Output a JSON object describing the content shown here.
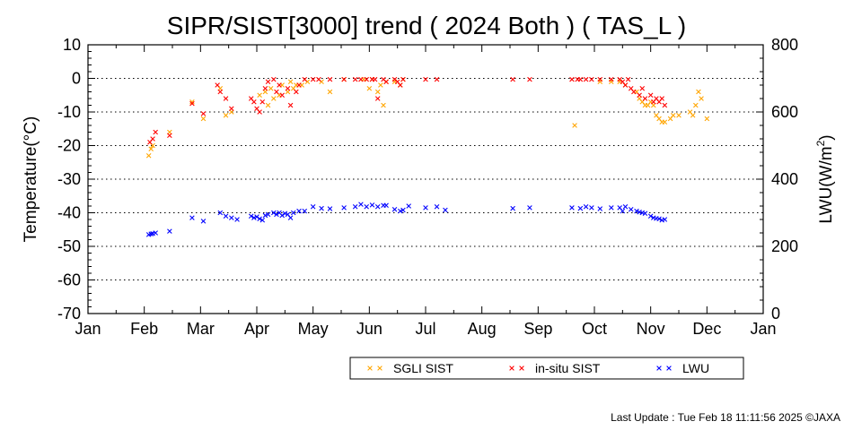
{
  "chart_data": {
    "type": "scatter",
    "title": "SIPR/SIST[3000] trend ( 2024 Both ) ( TAS_L )",
    "ylabel": "Temperature(°C)",
    "y2label_main": "LWU(W/m",
    "y2label_sup": "2",
    "y2label_end": ")",
    "ylim": [
      -70,
      10
    ],
    "yticks": [
      10,
      0,
      -10,
      -20,
      -30,
      -40,
      -50,
      -60,
      -70
    ],
    "y2lim": [
      0,
      800
    ],
    "y2ticks": [
      800,
      600,
      400,
      200,
      0
    ],
    "xlim": [
      0,
      12
    ],
    "x_unit": "month",
    "xtick_labels": [
      "Jan",
      "Feb",
      "Mar",
      "Apr",
      "May",
      "Jun",
      "Jul",
      "Aug",
      "Sep",
      "Oct",
      "Nov",
      "Dec",
      "Jan"
    ],
    "grid": "horizontal-dotted",
    "legend_position": "bottom",
    "marker": "x",
    "series": [
      {
        "name": "SGLI SIST",
        "color": "#ffa500",
        "axis": "left",
        "points": [
          [
            1.08,
            -23
          ],
          [
            1.12,
            -21
          ],
          [
            1.15,
            -20
          ],
          [
            1.45,
            -16
          ],
          [
            1.85,
            -7
          ],
          [
            2.05,
            -12
          ],
          [
            2.35,
            -3
          ],
          [
            2.45,
            -11
          ],
          [
            2.55,
            -10
          ],
          [
            3.05,
            -5
          ],
          [
            3.15,
            -4
          ],
          [
            3.2,
            -8
          ],
          [
            3.25,
            -3
          ],
          [
            3.3,
            -6
          ],
          [
            3.4,
            -5
          ],
          [
            3.45,
            -2
          ],
          [
            3.55,
            -4
          ],
          [
            3.6,
            -1
          ],
          [
            3.65,
            -3
          ],
          [
            3.7,
            -2
          ],
          [
            3.8,
            -2
          ],
          [
            3.9,
            -1
          ],
          [
            4.15,
            -1
          ],
          [
            4.3,
            -4
          ],
          [
            4.55,
            -0.3
          ],
          [
            4.9,
            -0.3
          ],
          [
            5.0,
            -3
          ],
          [
            5.05,
            -0.3
          ],
          [
            5.15,
            -4
          ],
          [
            5.2,
            -2
          ],
          [
            5.25,
            -8
          ],
          [
            5.3,
            -1
          ],
          [
            5.45,
            -1
          ],
          [
            5.55,
            -2
          ],
          [
            5.6,
            -0.3
          ],
          [
            8.65,
            -14
          ],
          [
            9.1,
            -1
          ],
          [
            9.3,
            -1
          ],
          [
            9.45,
            -1
          ],
          [
            9.55,
            -2
          ],
          [
            9.75,
            -4
          ],
          [
            9.8,
            -6
          ],
          [
            9.85,
            -7
          ],
          [
            9.9,
            -8
          ],
          [
            9.95,
            -8
          ],
          [
            10.0,
            -7
          ],
          [
            10.05,
            -8
          ],
          [
            10.1,
            -11
          ],
          [
            10.15,
            -12
          ],
          [
            10.2,
            -13
          ],
          [
            10.25,
            -13
          ],
          [
            10.35,
            -12
          ],
          [
            10.4,
            -11
          ],
          [
            10.5,
            -11
          ],
          [
            10.7,
            -10
          ],
          [
            10.75,
            -11
          ],
          [
            10.8,
            -8
          ],
          [
            10.85,
            -4
          ],
          [
            10.9,
            -6
          ],
          [
            11.0,
            -12
          ]
        ]
      },
      {
        "name": "in-situ SIST",
        "color": "#ff0000",
        "axis": "left",
        "points": [
          [
            1.1,
            -19
          ],
          [
            1.15,
            -18
          ],
          [
            1.2,
            -16
          ],
          [
            1.45,
            -17
          ],
          [
            1.85,
            -7.5
          ],
          [
            2.05,
            -10.5
          ],
          [
            2.3,
            -2
          ],
          [
            2.35,
            -4
          ],
          [
            2.45,
            -6
          ],
          [
            2.55,
            -9
          ],
          [
            2.9,
            -6
          ],
          [
            2.95,
            -7
          ],
          [
            3.0,
            -9
          ],
          [
            3.05,
            -10
          ],
          [
            3.1,
            -7
          ],
          [
            3.15,
            -3
          ],
          [
            3.2,
            -1
          ],
          [
            3.3,
            -0.3
          ],
          [
            3.35,
            -4
          ],
          [
            3.4,
            -2
          ],
          [
            3.45,
            -5
          ],
          [
            3.55,
            -3
          ],
          [
            3.6,
            -8
          ],
          [
            3.7,
            -4
          ],
          [
            3.75,
            -2
          ],
          [
            3.85,
            -0.3
          ],
          [
            4.0,
            -0.3
          ],
          [
            4.1,
            -0.3
          ],
          [
            4.3,
            -0.3
          ],
          [
            4.55,
            -0.3
          ],
          [
            4.75,
            -0.3
          ],
          [
            4.85,
            -0.3
          ],
          [
            4.95,
            -0.3
          ],
          [
            5.05,
            -0.3
          ],
          [
            5.1,
            -0.3
          ],
          [
            5.15,
            -6
          ],
          [
            5.25,
            -0.3
          ],
          [
            5.3,
            -1
          ],
          [
            5.45,
            -0.3
          ],
          [
            5.5,
            -1
          ],
          [
            5.55,
            -2
          ],
          [
            5.6,
            -0.3
          ],
          [
            6.0,
            -0.3
          ],
          [
            6.2,
            -0.3
          ],
          [
            7.55,
            -0.3
          ],
          [
            7.85,
            -0.3
          ],
          [
            8.6,
            -0.3
          ],
          [
            8.7,
            -0.3
          ],
          [
            8.75,
            -0.3
          ],
          [
            8.85,
            -0.3
          ],
          [
            8.95,
            -0.3
          ],
          [
            9.1,
            -0.3
          ],
          [
            9.3,
            -0.3
          ],
          [
            9.45,
            -0.3
          ],
          [
            9.5,
            -1
          ],
          [
            9.55,
            -2
          ],
          [
            9.6,
            -0.3
          ],
          [
            9.65,
            -3
          ],
          [
            9.7,
            -4
          ],
          [
            9.8,
            -5
          ],
          [
            9.85,
            -3
          ],
          [
            9.9,
            -6
          ],
          [
            10.0,
            -5
          ],
          [
            10.05,
            -7
          ],
          [
            10.1,
            -6
          ],
          [
            10.15,
            -7
          ],
          [
            10.2,
            -6
          ],
          [
            10.25,
            -8
          ]
        ]
      },
      {
        "name": "LWU",
        "color": "#0000ff",
        "axis": "right",
        "points": [
          [
            1.08,
            235
          ],
          [
            1.12,
            237
          ],
          [
            1.15,
            238
          ],
          [
            1.2,
            240
          ],
          [
            1.45,
            245
          ],
          [
            1.85,
            285
          ],
          [
            2.05,
            275
          ],
          [
            2.35,
            300
          ],
          [
            2.45,
            290
          ],
          [
            2.55,
            285
          ],
          [
            2.65,
            280
          ],
          [
            2.9,
            290
          ],
          [
            2.95,
            285
          ],
          [
            3.0,
            288
          ],
          [
            3.05,
            282
          ],
          [
            3.1,
            278
          ],
          [
            3.15,
            292
          ],
          [
            3.2,
            295
          ],
          [
            3.3,
            300
          ],
          [
            3.35,
            295
          ],
          [
            3.4,
            300
          ],
          [
            3.45,
            292
          ],
          [
            3.5,
            298
          ],
          [
            3.55,
            295
          ],
          [
            3.6,
            285
          ],
          [
            3.65,
            300
          ],
          [
            3.75,
            305
          ],
          [
            3.85,
            305
          ],
          [
            4.0,
            318
          ],
          [
            4.15,
            313
          ],
          [
            4.3,
            312
          ],
          [
            4.55,
            315
          ],
          [
            4.75,
            318
          ],
          [
            4.85,
            325
          ],
          [
            4.95,
            318
          ],
          [
            5.05,
            323
          ],
          [
            5.15,
            318
          ],
          [
            5.25,
            322
          ],
          [
            5.3,
            322
          ],
          [
            5.45,
            310
          ],
          [
            5.55,
            305
          ],
          [
            5.6,
            308
          ],
          [
            5.7,
            320
          ],
          [
            6.0,
            315
          ],
          [
            6.2,
            318
          ],
          [
            6.35,
            308
          ],
          [
            7.55,
            313
          ],
          [
            7.85,
            315
          ],
          [
            8.6,
            315
          ],
          [
            8.75,
            313
          ],
          [
            8.85,
            318
          ],
          [
            8.95,
            315
          ],
          [
            9.1,
            312
          ],
          [
            9.3,
            315
          ],
          [
            9.45,
            315
          ],
          [
            9.5,
            305
          ],
          [
            9.55,
            318
          ],
          [
            9.65,
            310
          ],
          [
            9.75,
            305
          ],
          [
            9.8,
            302
          ],
          [
            9.85,
            300
          ],
          [
            9.9,
            298
          ],
          [
            10.0,
            290
          ],
          [
            10.05,
            285
          ],
          [
            10.1,
            283
          ],
          [
            10.15,
            282
          ],
          [
            10.2,
            278
          ],
          [
            10.25,
            280
          ]
        ]
      }
    ],
    "legend": [
      {
        "label": "SGLI SIST",
        "color": "#ffa500"
      },
      {
        "label": "in-situ SIST",
        "color": "#ff0000"
      },
      {
        "label": "LWU",
        "color": "#0000ff"
      }
    ]
  },
  "footer": {
    "last_update": "Last Update : Tue Feb 18 11:11:56 2025  ©JAXA"
  }
}
